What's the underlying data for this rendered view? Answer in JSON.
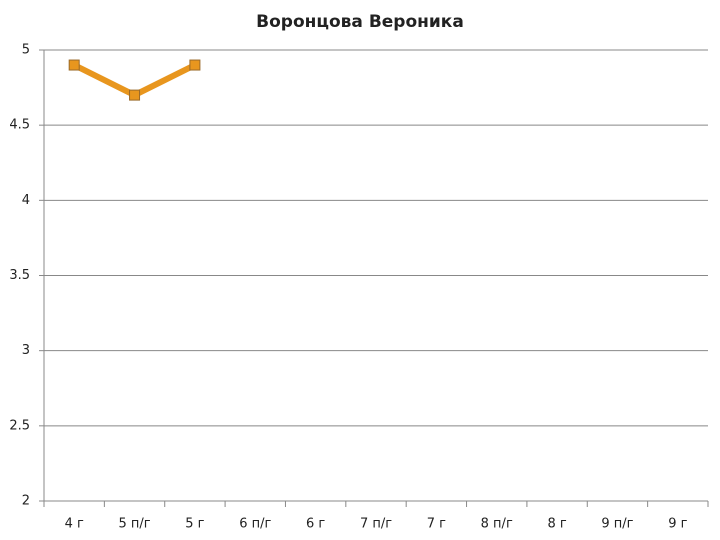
{
  "chart_data": {
    "type": "line",
    "title": "Воронцова Вероника",
    "categories": [
      "4 г",
      "5 п/г",
      "5 г",
      "6 п/г",
      "6 г",
      "7 п/г",
      "7 г",
      "8 п/г",
      "8 г",
      "9 п/г",
      "9 г"
    ],
    "values": [
      4.9,
      4.7,
      4.9,
      null,
      null,
      null,
      null,
      null,
      null,
      null,
      null
    ],
    "color": "#e8961e",
    "ylim": [
      2,
      5
    ],
    "yticks": [
      2,
      2.5,
      3,
      3.5,
      4,
      4.5,
      5
    ],
    "grid": true
  }
}
